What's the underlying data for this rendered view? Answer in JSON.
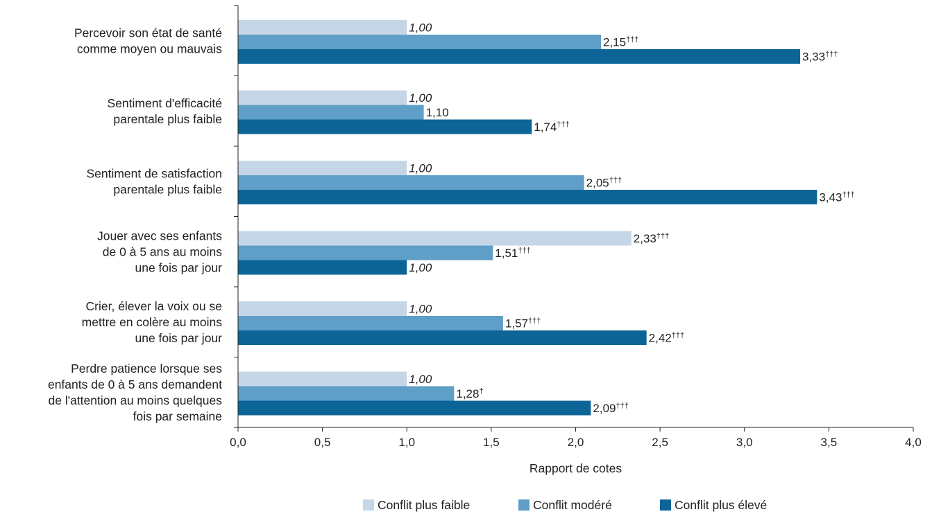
{
  "chart_data": {
    "type": "bar",
    "orientation": "horizontal",
    "xlabel": "Rapport de cotes",
    "xlim": [
      0,
      4
    ],
    "xticks": [
      "0,0",
      "0,5",
      "1,0",
      "1,5",
      "2,0",
      "2,5",
      "3,0",
      "3,5",
      "4,0"
    ],
    "legend_position": "bottom",
    "grid": false,
    "categories": [
      [
        "Percevoir son état de santé",
        "comme moyen ou mauvais"
      ],
      [
        "Sentiment d'efficacité",
        "parentale plus faible"
      ],
      [
        "Sentiment de satisfaction",
        "parentale plus faible"
      ],
      [
        "Jouer avec ses enfants",
        "de 0 à 5 ans au moins",
        "une fois par jour"
      ],
      [
        "Crier, élever la voix ou se",
        "mettre en colère au moins",
        "une fois par jour"
      ],
      [
        "Perdre patience lorsque ses",
        "enfants de 0 à 5 ans demandent",
        "de l'attention au moins quelques",
        "fois par semaine"
      ]
    ],
    "series": [
      {
        "name": "Conflit plus faible",
        "color": "#c5d6e6",
        "values": [
          1.0,
          1.0,
          1.0,
          2.33,
          1.0,
          1.0
        ],
        "labels": [
          "1,00",
          "1,00",
          "1,00",
          "2,33",
          "1,00",
          "1,00"
        ],
        "marks": [
          "",
          "",
          "",
          "†††",
          "",
          ""
        ],
        "italic": [
          true,
          true,
          true,
          false,
          true,
          true
        ]
      },
      {
        "name": "Conflit modéré",
        "color": "#5e9ec7",
        "values": [
          2.15,
          1.1,
          2.05,
          1.51,
          1.57,
          1.28
        ],
        "labels": [
          "2,15",
          "1,10",
          "2,05",
          "1,51",
          "1,57",
          "1,28"
        ],
        "marks": [
          "†††",
          "",
          "†††",
          "†††",
          "†††",
          "†"
        ],
        "italic": [
          false,
          false,
          false,
          false,
          false,
          false
        ]
      },
      {
        "name": "Conflit plus élevé",
        "color": "#0d6597",
        "values": [
          3.33,
          1.74,
          3.43,
          1.0,
          2.42,
          2.09
        ],
        "labels": [
          "3,33",
          "1,74",
          "3,43",
          "1,00",
          "2,42",
          "2,09"
        ],
        "marks": [
          "†††",
          "†††",
          "†††",
          "",
          "†††",
          "†††"
        ],
        "italic": [
          false,
          false,
          false,
          true,
          false,
          false
        ]
      }
    ]
  }
}
